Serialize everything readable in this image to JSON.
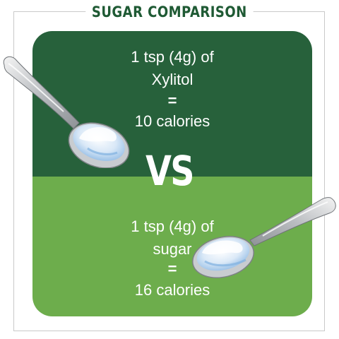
{
  "title": "SUGAR COMPARISON",
  "colors": {
    "title": "#1f5a34",
    "top_panel": "#27613b",
    "bottom_panel": "#6dad4c",
    "text": "#ffffff"
  },
  "xylitol": {
    "line1": "1 tsp (4g) of",
    "line2": "Xylitol",
    "equals": "=",
    "calories": "10 calories"
  },
  "vs_label": "VS",
  "sugar": {
    "line1": "1 tsp (4g) of",
    "line2": "sugar",
    "equals": "=",
    "calories": "16 calories"
  },
  "icons": [
    "spoon-with-xylitol-icon",
    "spoon-with-sugar-icon"
  ]
}
